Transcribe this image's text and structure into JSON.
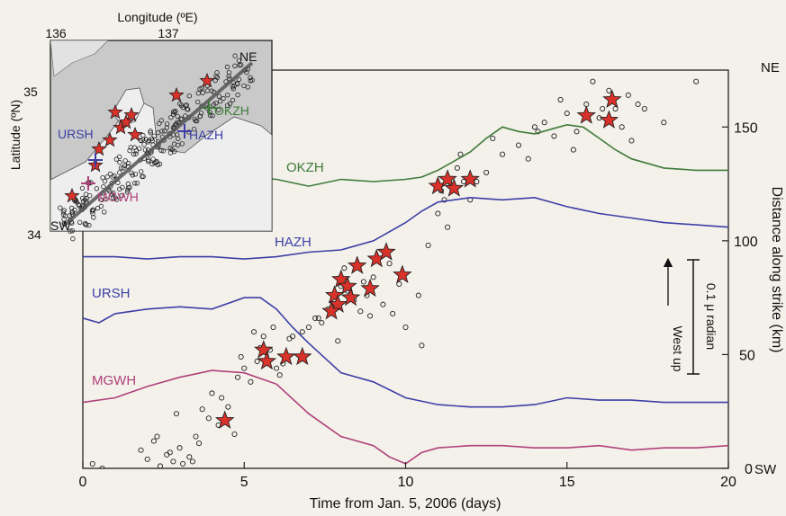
{
  "chart_data": [
    {
      "type": "line",
      "xlabel": "Time from Jan. 5, 2006 (days)",
      "ylabel": "Distance along strike (km)",
      "xlim": [
        0,
        20
      ],
      "ylim": [
        0,
        175
      ],
      "xticks": [
        "0",
        "5",
        "10",
        "15",
        "20"
      ],
      "yticks": [
        "0",
        "50",
        "100",
        "150"
      ],
      "y_end_labels": {
        "bottom": "SW",
        "top": "NE"
      },
      "scale_bar": {
        "label": "0.1 μ radian",
        "value": 0.1
      },
      "arrow_label": "West up",
      "series": [
        {
          "name": "OKZH",
          "color": "#3f7a3a",
          "x": [
            0,
            1,
            2,
            3,
            4,
            5,
            6,
            7,
            8,
            9,
            10,
            10.5,
            11,
            11.5,
            12,
            12.5,
            13,
            13.5,
            14,
            14.5,
            15,
            15.5,
            16,
            16.5,
            17,
            17.5,
            18,
            19,
            20
          ],
          "y": [
            131,
            130,
            130,
            132,
            129,
            128,
            127,
            124,
            127,
            126,
            127,
            128,
            131,
            135,
            139,
            145,
            150,
            148,
            147,
            149,
            151,
            150,
            145,
            140,
            136,
            134,
            132,
            131,
            131
          ]
        },
        {
          "name": "HAZH",
          "color": "#3d3fa6",
          "x": [
            0,
            1,
            2,
            3,
            4,
            5,
            6,
            7,
            8,
            9,
            10,
            10.5,
            11,
            11.5,
            12,
            13,
            14,
            15,
            16,
            17,
            18,
            19,
            20
          ],
          "y": [
            93,
            93,
            92,
            93,
            93,
            92,
            93,
            95,
            96,
            100,
            108,
            113,
            117,
            118,
            119,
            118,
            119,
            115,
            112,
            110,
            108,
            107,
            106
          ]
        },
        {
          "name": "URSH",
          "color": "#3d3fa6",
          "x": [
            0,
            0.5,
            1,
            2,
            3,
            4,
            5,
            5.5,
            6,
            6.5,
            7,
            8,
            9,
            10,
            11,
            12,
            13,
            14,
            15,
            16,
            17,
            18,
            19,
            20
          ],
          "y": [
            66,
            64,
            68,
            70,
            71,
            70,
            75,
            75,
            70,
            62,
            55,
            42,
            38,
            31,
            28,
            27,
            27,
            28,
            31,
            30,
            30,
            29,
            29,
            29
          ]
        },
        {
          "name": "MGWH",
          "color": "#b0407a",
          "x": [
            0,
            1,
            2,
            3,
            4,
            5,
            6,
            7,
            8,
            9,
            9.5,
            10,
            10.5,
            11,
            12,
            13,
            14,
            15,
            16,
            17,
            18,
            19,
            20
          ],
          "y": [
            29,
            31,
            36,
            40,
            43,
            42,
            37,
            24,
            14,
            10,
            5,
            2,
            7,
            9,
            10,
            10,
            9,
            9,
            10,
            8,
            9,
            9,
            10
          ]
        }
      ],
      "stars": {
        "x": [
          4.4,
          5.6,
          5.7,
          6.3,
          6.8,
          7.8,
          7.9,
          7.7,
          8.0,
          8.2,
          8.3,
          8.5,
          8.9,
          9.1,
          9.4,
          9.9,
          11,
          11.3,
          11.5,
          12,
          15.6,
          16.3,
          16.4
        ],
        "y": [
          21,
          52,
          47,
          49,
          49,
          76,
          72,
          69,
          83,
          80,
          75,
          89,
          79,
          92,
          95,
          85,
          124,
          127,
          123,
          127,
          155,
          153,
          162
        ]
      },
      "events": {
        "x": [
          0.3,
          0.6,
          1.8,
          2.0,
          2.2,
          2.4,
          2.6,
          2.8,
          3.0,
          3.1,
          3.3,
          3.5,
          3.7,
          4.0,
          4.2,
          4.5,
          4.8,
          5.0,
          5.2,
          5.4,
          5.6,
          5.8,
          6.0,
          6.2,
          6.5,
          6.8,
          7.0,
          7.2,
          7.4,
          7.6,
          7.8,
          8.0,
          8.2,
          8.4,
          8.6,
          8.8,
          9.0,
          9.3,
          9.6,
          10.0,
          10.4,
          10.7,
          11.0,
          11.2,
          11.4,
          11.6,
          11.8,
          12.0,
          12.5,
          13.0,
          13.5,
          14.0,
          14.3,
          14.6,
          15.0,
          15.3,
          15.6,
          16.0,
          16.3,
          16.7,
          17.0,
          17.4,
          18.0,
          19.0,
          2.3,
          2.9,
          3.4,
          4.3,
          4.9,
          5.3,
          5.9,
          6.4,
          7.3,
          8.1,
          8.7,
          9.5,
          10.5,
          11.1,
          11.7,
          12.7,
          13.8,
          14.8,
          15.8,
          16.5,
          17.2,
          3.6,
          4.7,
          5.5,
          6.1,
          7.9,
          8.9,
          9.8,
          11.3,
          12.2,
          14.1,
          15.2,
          16.1,
          16.9,
          2.7,
          3.9
        ],
        "y": [
          2,
          0,
          8,
          4,
          12,
          1,
          6,
          3,
          9,
          2,
          5,
          14,
          26,
          33,
          19,
          27,
          40,
          44,
          38,
          47,
          58,
          52,
          44,
          46,
          58,
          60,
          62,
          66,
          64,
          70,
          72,
          80,
          78,
          74,
          69,
          76,
          84,
          72,
          68,
          62,
          76,
          98,
          112,
          118,
          124,
          132,
          126,
          118,
          130,
          138,
          142,
          150,
          152,
          146,
          156,
          148,
          160,
          154,
          166,
          150,
          144,
          158,
          152,
          170,
          14,
          24,
          3,
          31,
          49,
          60,
          62,
          57,
          66,
          88,
          82,
          90,
          54,
          122,
          138,
          145,
          136,
          162,
          170,
          158,
          160,
          11,
          15,
          53,
          41,
          56,
          67,
          81,
          106,
          126,
          148,
          140,
          158,
          164,
          7,
          22
        ]
      }
    },
    {
      "type": "scatter",
      "title": "",
      "xlabel": "Longitude (ºE)",
      "ylabel": "Latitude (ºN)",
      "xticks": [
        "136",
        "137"
      ],
      "yticks": [
        "34",
        "35"
      ],
      "corner_labels": {
        "ne": "NE",
        "sw": "SW"
      },
      "stations": [
        {
          "name": "OKZH",
          "color": "#3f7a3a"
        },
        {
          "name": "HAZH",
          "color": "#3d3fa6"
        },
        {
          "name": "URSH",
          "color": "#3d3fa6"
        },
        {
          "name": "MGWH",
          "color": "#b0407a"
        }
      ]
    }
  ]
}
